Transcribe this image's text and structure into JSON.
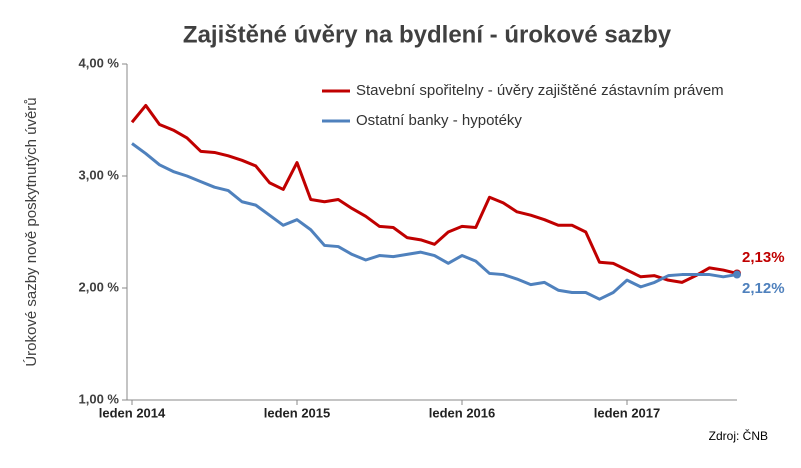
{
  "chart_data": {
    "type": "line",
    "title": "Zajištěné úvěry na bydlení - úrokové sazby",
    "y_label": "Úrokové sazby nově poskytnutých úvěrů",
    "source": "Zdroj: ČNB",
    "categories": [
      "leden 2014",
      null,
      null,
      null,
      null,
      null,
      null,
      null,
      null,
      null,
      null,
      null,
      "leden 2015",
      null,
      null,
      null,
      null,
      null,
      null,
      null,
      null,
      null,
      null,
      null,
      "leden 2016",
      null,
      null,
      null,
      null,
      null,
      null,
      null,
      null,
      null,
      null,
      null,
      "leden 2017",
      null,
      null,
      null,
      null,
      null,
      null,
      null,
      null
    ],
    "series": [
      {
        "name": "Stavební spořitelny - úvěry zajištěné zástavním právem",
        "color": "#c00000",
        "last_label": "2,13%",
        "values": [
          3.48,
          3.63,
          3.46,
          3.41,
          3.34,
          3.22,
          3.21,
          3.18,
          3.14,
          3.09,
          2.94,
          2.88,
          3.12,
          2.79,
          2.77,
          2.79,
          2.71,
          2.64,
          2.55,
          2.54,
          2.45,
          2.43,
          2.39,
          2.5,
          2.55,
          2.54,
          2.81,
          2.76,
          2.68,
          2.65,
          2.61,
          2.56,
          2.56,
          2.5,
          2.23,
          2.22,
          2.16,
          2.1,
          2.11,
          2.07,
          2.05,
          2.11,
          2.18,
          2.16,
          2.13
        ]
      },
      {
        "name": "Ostatní banky - hypotéky",
        "color": "#4f81bd",
        "last_label": "2,12%",
        "values": [
          3.29,
          3.2,
          3.1,
          3.04,
          3.0,
          2.95,
          2.9,
          2.87,
          2.77,
          2.74,
          2.65,
          2.56,
          2.61,
          2.52,
          2.38,
          2.37,
          2.3,
          2.25,
          2.29,
          2.28,
          2.3,
          2.32,
          2.29,
          2.22,
          2.29,
          2.24,
          2.13,
          2.12,
          2.08,
          2.03,
          2.05,
          1.98,
          1.96,
          1.96,
          1.9,
          1.96,
          2.07,
          2.01,
          2.05,
          2.11,
          2.12,
          2.12,
          2.12,
          2.1,
          2.12
        ]
      }
    ],
    "ylim": [
      1,
      4
    ],
    "yticks": [
      {
        "value": 1,
        "label": "1,00 %"
      },
      {
        "value": 2,
        "label": "2,00 %"
      },
      {
        "value": 3,
        "label": "3,00 %"
      },
      {
        "value": 4,
        "label": "4,00 %"
      }
    ],
    "grid": false,
    "legend": "top-right"
  }
}
